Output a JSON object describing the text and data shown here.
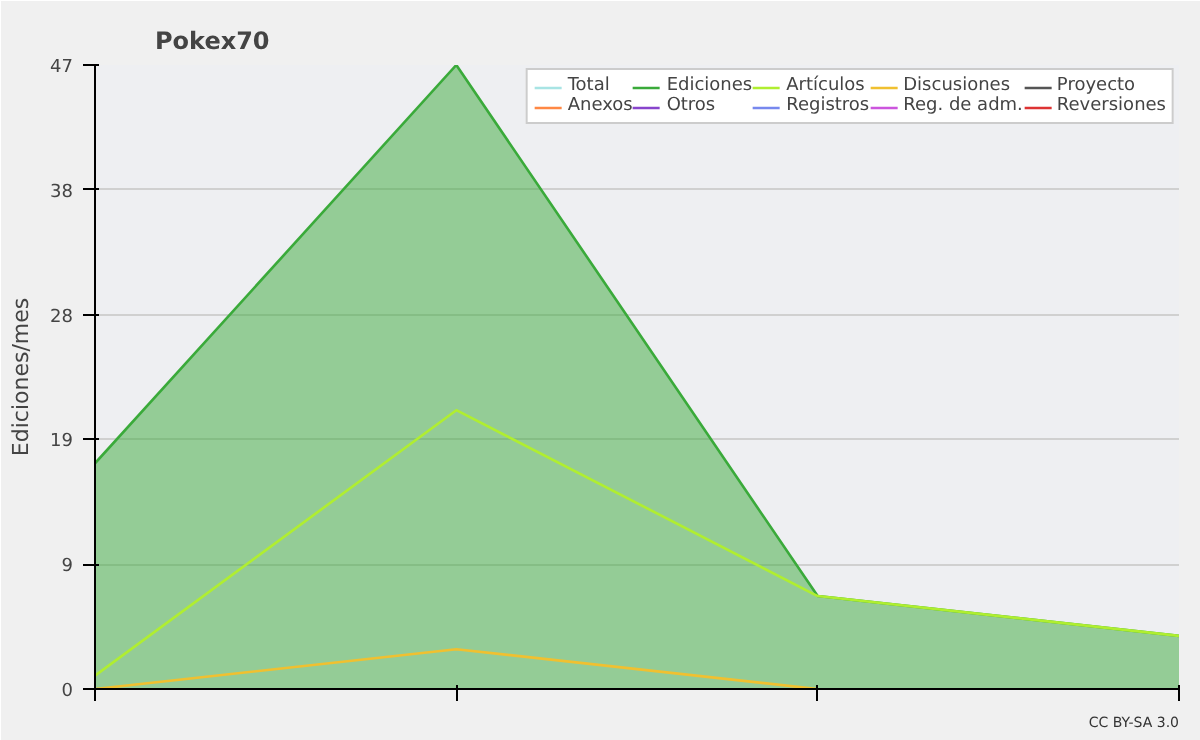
{
  "chart_data": {
    "type": "line",
    "title": "Pokex70",
    "ylabel": "Ediciones/mes",
    "categories": [
      null,
      null,
      null,
      null
    ],
    "ylim": [
      0,
      47
    ],
    "yticks": [
      0,
      {
        "value": 9.4,
        "label": "9"
      },
      {
        "value": 18.8,
        "label": "19"
      },
      {
        "value": 28.2,
        "label": "28"
      },
      {
        "value": 37.6,
        "label": "38"
      },
      47
    ],
    "grid": "y",
    "legend": "top right",
    "tick_labels": "y",
    "annotations": [
      "CC BY-SA 3.0"
    ],
    "series": [
      {
        "name": "Total",
        "color": "#a8e4e4",
        "values": [
          null,
          null,
          null,
          null
        ]
      },
      {
        "name": "Ediciones",
        "type": "area",
        "color": "#3aaa3a",
        "values": [
          17,
          47,
          7,
          4
        ]
      },
      {
        "name": "Artículos",
        "color": "#b0ee30",
        "values": [
          1,
          21,
          7,
          4
        ]
      },
      {
        "name": "Discusiones",
        "color": "#f0c030",
        "values": [
          0,
          3,
          0,
          null
        ]
      },
      {
        "name": "Proyecto",
        "color": "#555555",
        "values": [
          null,
          null,
          null,
          null
        ]
      },
      {
        "name": "Anexos",
        "color": "#ff8844",
        "values": [
          null,
          null,
          null,
          null
        ]
      },
      {
        "name": "Otros",
        "color": "#8844cc",
        "values": [
          null,
          null,
          null,
          null
        ]
      },
      {
        "name": "Registros",
        "color": "#7788ee",
        "values": [
          null,
          null,
          null,
          null
        ]
      },
      {
        "name": "Reg. de adm.",
        "color": "#cc55dd",
        "values": [
          null,
          null,
          null,
          null
        ]
      },
      {
        "name": "Reversiones",
        "color": "#dd3333",
        "values": [
          null,
          null,
          null,
          null
        ]
      }
    ]
  }
}
